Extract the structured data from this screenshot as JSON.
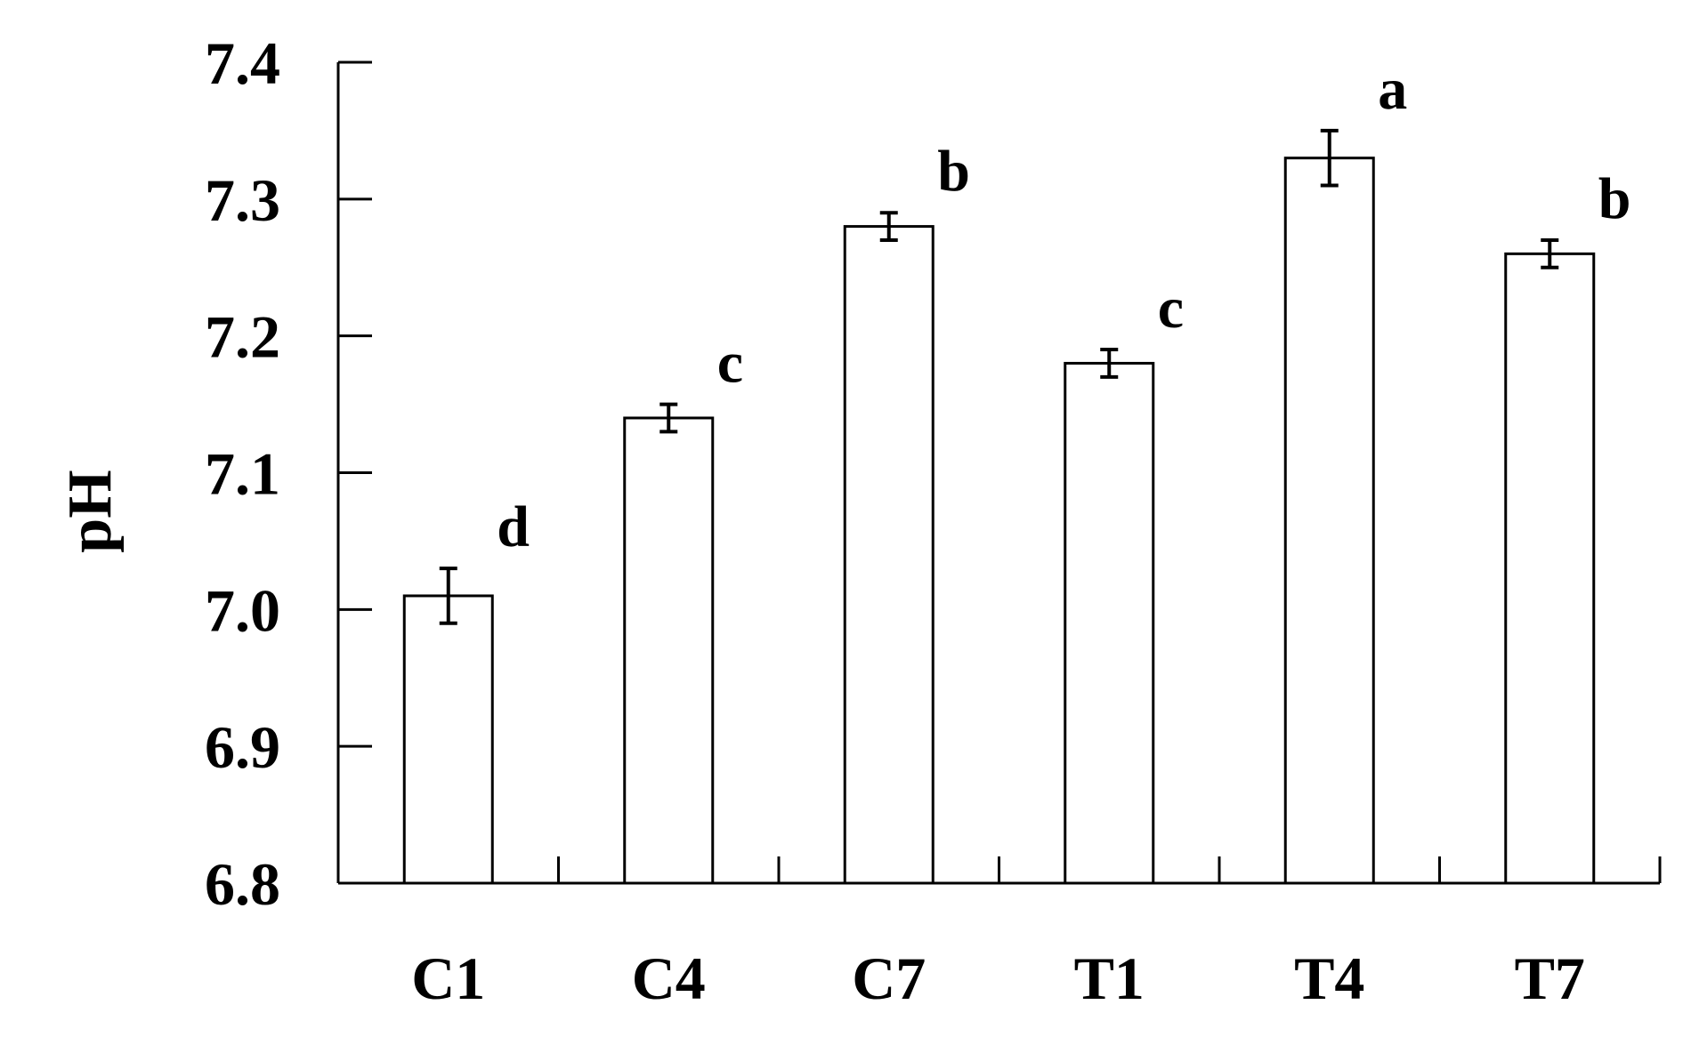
{
  "chart_data": {
    "type": "bar",
    "title": "",
    "xlabel": "",
    "ylabel": "pH",
    "ylim": [
      6.8,
      7.4
    ],
    "yticks": [
      "6.8",
      "6.9",
      "7.0",
      "7.1",
      "7.2",
      "7.3",
      "7.4"
    ],
    "categories": [
      "C1",
      "C4",
      "C7",
      "T1",
      "T4",
      "T7"
    ],
    "values": [
      7.01,
      7.14,
      7.28,
      7.18,
      7.33,
      7.26
    ],
    "errors": [
      0.02,
      0.01,
      0.01,
      0.01,
      0.02,
      0.01
    ],
    "significance_letters": [
      "d",
      "c",
      "b",
      "c",
      "a",
      "b"
    ],
    "grid": false,
    "legend": "none",
    "colors": {
      "bar_fill": "#ffffff",
      "bar_stroke": "#000000",
      "axis": "#000000"
    }
  }
}
